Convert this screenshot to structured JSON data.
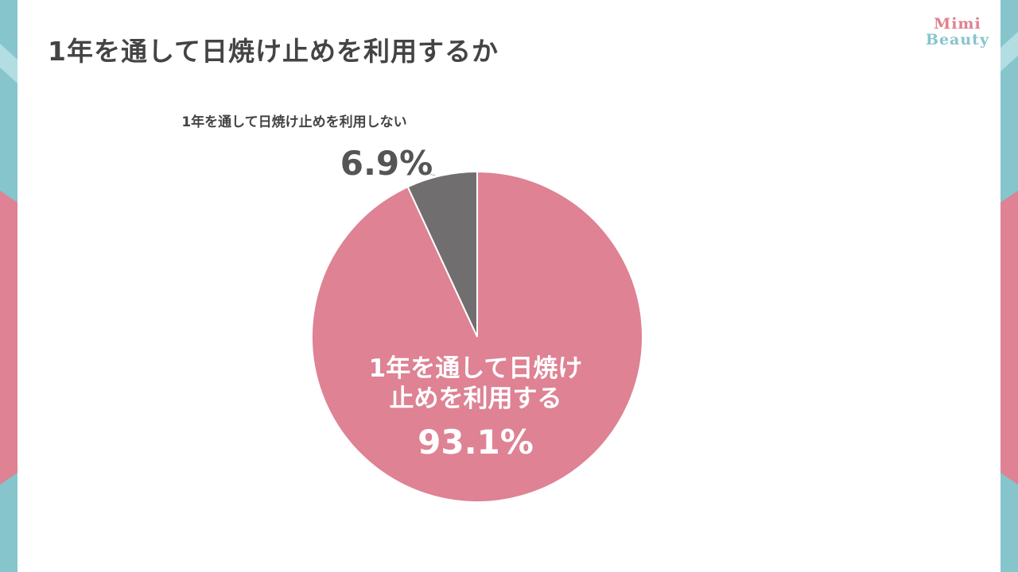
{
  "page": {
    "title": "1年を通して日焼け止めを利用するか",
    "logo": {
      "line1": "Mimi",
      "line2": "Beauty"
    }
  },
  "colors": {
    "use": "#de8294",
    "not_use": "#716e70",
    "accent_teal": "#86c5cc",
    "accent_pink": "#e0808f"
  },
  "chart_data": {
    "type": "pie",
    "title": "1年を通して日焼け止めを利用するか",
    "slices": [
      {
        "label": "1年を通して日焼け止めを利用しない",
        "value": 6.9,
        "value_label": "6.9%",
        "color": "#716e70"
      },
      {
        "label": "1年を通して日焼け止めを利用する",
        "value": 93.1,
        "value_label": "93.1%",
        "color": "#de8294"
      }
    ]
  }
}
